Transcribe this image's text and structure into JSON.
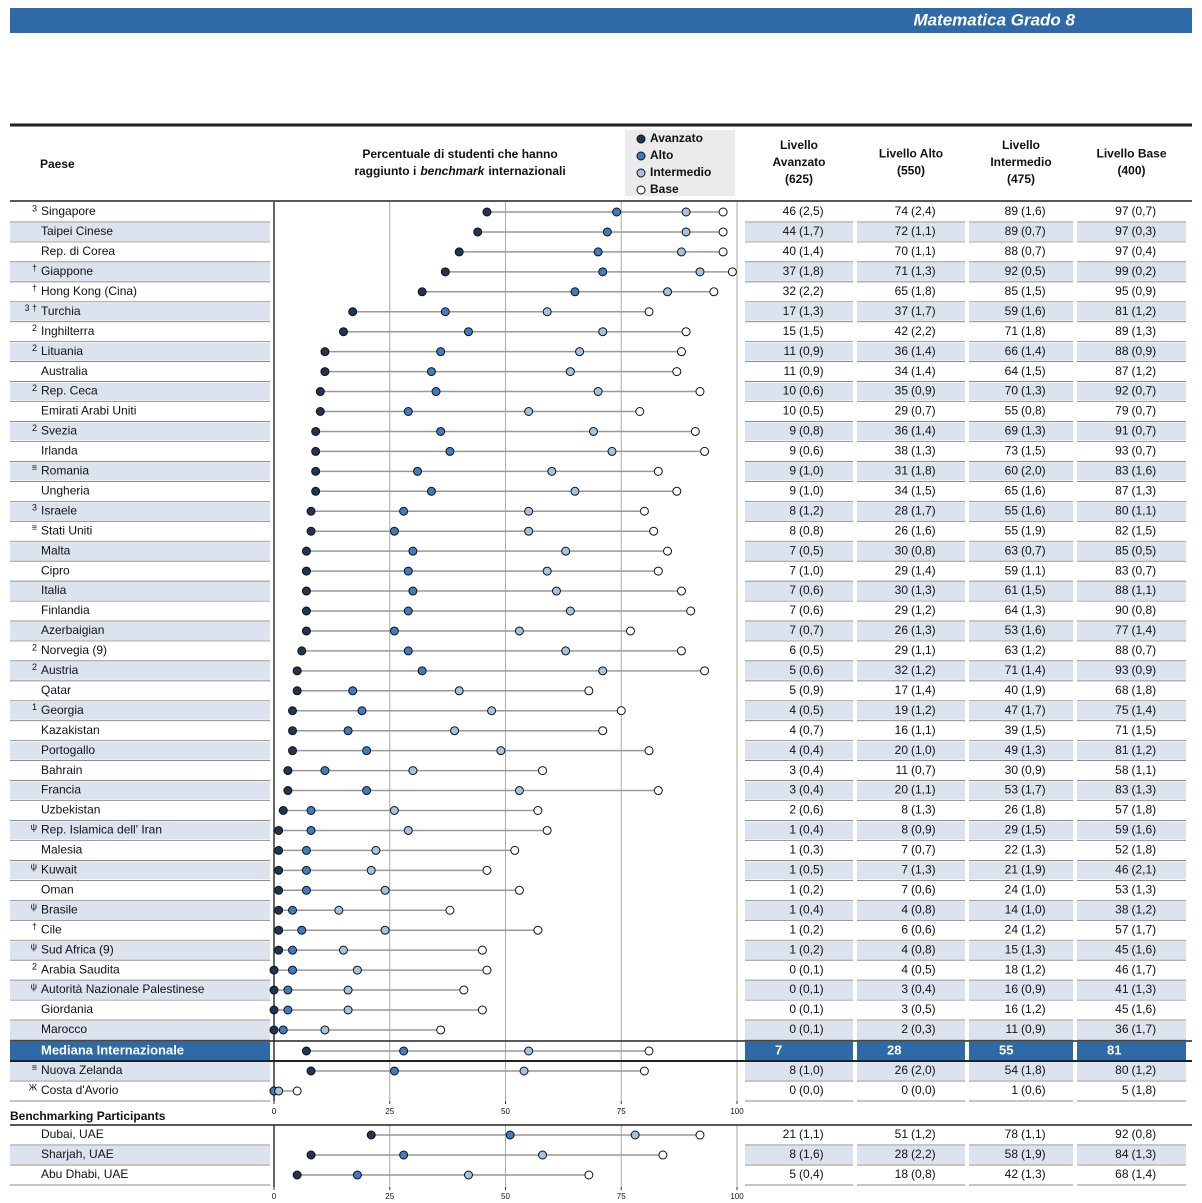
{
  "header": {
    "title": "Matematica Grado 8"
  },
  "chart_data": {
    "type": "dot",
    "country_header": "Paese",
    "chart_header": [
      "Percentuale di studenti che hanno",
      "raggiunto i",
      "benchmark",
      "internazionali"
    ],
    "column_headers": [
      [
        "Livello",
        "Avanzato",
        "(625)"
      ],
      [
        "Livello Alto",
        "(550)"
      ],
      [
        "Livello",
        "Intermedio",
        "(475)"
      ],
      [
        "Livello Base",
        "(400)"
      ]
    ],
    "series": [
      {
        "name": "Avanzato",
        "color": "#1f3550"
      },
      {
        "name": "Alto",
        "color": "#3d7cc0"
      },
      {
        "name": "Intermedio",
        "color": "#a3c3e2"
      },
      {
        "name": "Base",
        "color": "#ffffff"
      }
    ],
    "xlim": [
      0,
      100
    ],
    "xticks": [
      0,
      25,
      50,
      75,
      100
    ],
    "grid": true,
    "rows": [
      {
        "note": "3",
        "name": "Singapore",
        "values": [
          46,
          74,
          89,
          97
        ],
        "se": [
          "(2,5)",
          "(2,4)",
          "(1,6)",
          "(0,7)"
        ]
      },
      {
        "note": "",
        "name": "Taipei Cinese",
        "values": [
          44,
          72,
          89,
          97
        ],
        "se": [
          "(1,7)",
          "(1,1)",
          "(0,7)",
          "(0,3)"
        ]
      },
      {
        "note": "",
        "name": "Rep. di Corea",
        "values": [
          40,
          70,
          88,
          97
        ],
        "se": [
          "(1,4)",
          "(1,1)",
          "(0,7)",
          "(0,4)"
        ]
      },
      {
        "note": "†",
        "name": "Giappone",
        "values": [
          37,
          71,
          92,
          99
        ],
        "se": [
          "(1,8)",
          "(1,3)",
          "(0,5)",
          "(0,2)"
        ]
      },
      {
        "note": "†",
        "name": "Hong Kong (Cina)",
        "values": [
          32,
          65,
          85,
          95
        ],
        "se": [
          "(2,2)",
          "(1,8)",
          "(1,5)",
          "(0,9)"
        ]
      },
      {
        "note": "3 †",
        "name": "Turchia",
        "values": [
          17,
          37,
          59,
          81
        ],
        "se": [
          "(1,3)",
          "(1,7)",
          "(1,6)",
          "(1,2)"
        ]
      },
      {
        "note": "2",
        "name": "Inghilterra",
        "values": [
          15,
          42,
          71,
          89
        ],
        "se": [
          "(1,5)",
          "(2,2)",
          "(1,8)",
          "(1,3)"
        ]
      },
      {
        "note": "2",
        "name": "Lituania",
        "values": [
          11,
          36,
          66,
          88
        ],
        "se": [
          "(0,9)",
          "(1,4)",
          "(1,4)",
          "(0,9)"
        ]
      },
      {
        "note": "",
        "name": "Australia",
        "values": [
          11,
          34,
          64,
          87
        ],
        "se": [
          "(0,9)",
          "(1,4)",
          "(1,5)",
          "(1,2)"
        ]
      },
      {
        "note": "2",
        "name": "Rep. Ceca",
        "values": [
          10,
          35,
          70,
          92
        ],
        "se": [
          "(0,6)",
          "(0,9)",
          "(1,3)",
          "(0,7)"
        ]
      },
      {
        "note": "",
        "name": "Emirati Arabi Uniti",
        "values": [
          10,
          29,
          55,
          79
        ],
        "se": [
          "(0,5)",
          "(0,7)",
          "(0,8)",
          "(0,7)"
        ]
      },
      {
        "note": "2",
        "name": "Svezia",
        "values": [
          9,
          36,
          69,
          91
        ],
        "se": [
          "(0,8)",
          "(1,4)",
          "(1,3)",
          "(0,7)"
        ]
      },
      {
        "note": "",
        "name": "Irlanda",
        "values": [
          9,
          38,
          73,
          93
        ],
        "se": [
          "(0,6)",
          "(1,3)",
          "(1,5)",
          "(0,7)"
        ]
      },
      {
        "note": "≡",
        "name": "Romania",
        "values": [
          9,
          31,
          60,
          83
        ],
        "se": [
          "(1,0)",
          "(1,8)",
          "(2,0)",
          "(1,6)"
        ]
      },
      {
        "note": "",
        "name": "Ungheria",
        "values": [
          9,
          34,
          65,
          87
        ],
        "se": [
          "(1,0)",
          "(1,5)",
          "(1,6)",
          "(1,3)"
        ]
      },
      {
        "note": "3",
        "name": "Israele",
        "values": [
          8,
          28,
          55,
          80
        ],
        "se": [
          "(1,2)",
          "(1,7)",
          "(1,6)",
          "(1,1)"
        ]
      },
      {
        "note": "≡",
        "name": "Stati Uniti",
        "values": [
          8,
          26,
          55,
          82
        ],
        "se": [
          "(0,8)",
          "(1,6)",
          "(1,9)",
          "(1,5)"
        ]
      },
      {
        "note": "",
        "name": "Malta",
        "values": [
          7,
          30,
          63,
          85
        ],
        "se": [
          "(0,5)",
          "(0,8)",
          "(0,7)",
          "(0,5)"
        ]
      },
      {
        "note": "",
        "name": "Cipro",
        "values": [
          7,
          29,
          59,
          83
        ],
        "se": [
          "(1,0)",
          "(1,4)",
          "(1,1)",
          "(0,7)"
        ]
      },
      {
        "note": "",
        "name": "Italia",
        "values": [
          7,
          30,
          61,
          88
        ],
        "se": [
          "(0,6)",
          "(1,3)",
          "(1,5)",
          "(1,1)"
        ]
      },
      {
        "note": "",
        "name": "Finlandia",
        "values": [
          7,
          29,
          64,
          90
        ],
        "se": [
          "(0,6)",
          "(1,2)",
          "(1,3)",
          "(0,8)"
        ]
      },
      {
        "note": "",
        "name": "Azerbaigian",
        "values": [
          7,
          26,
          53,
          77
        ],
        "se": [
          "(0,7)",
          "(1,3)",
          "(1,6)",
          "(1,4)"
        ]
      },
      {
        "note": "2",
        "name": "Norvegia (9)",
        "values": [
          6,
          29,
          63,
          88
        ],
        "se": [
          "(0,5)",
          "(1,1)",
          "(1,2)",
          "(0,7)"
        ]
      },
      {
        "note": "2",
        "name": "Austria",
        "values": [
          5,
          32,
          71,
          93
        ],
        "se": [
          "(0,6)",
          "(1,2)",
          "(1,4)",
          "(0,9)"
        ]
      },
      {
        "note": "",
        "name": "Qatar",
        "values": [
          5,
          17,
          40,
          68
        ],
        "se": [
          "(0,9)",
          "(1,4)",
          "(1,9)",
          "(1,8)"
        ]
      },
      {
        "note": "1",
        "name": "Georgia",
        "values": [
          4,
          19,
          47,
          75
        ],
        "se": [
          "(0,5)",
          "(1,2)",
          "(1,7)",
          "(1,4)"
        ]
      },
      {
        "note": "",
        "name": "Kazakistan",
        "values": [
          4,
          16,
          39,
          71
        ],
        "se": [
          "(0,7)",
          "(1,1)",
          "(1,5)",
          "(1,5)"
        ]
      },
      {
        "note": "",
        "name": "Portogallo",
        "values": [
          4,
          20,
          49,
          81
        ],
        "se": [
          "(0,4)",
          "(1,0)",
          "(1,3)",
          "(1,2)"
        ]
      },
      {
        "note": "",
        "name": "Bahrain",
        "values": [
          3,
          11,
          30,
          58
        ],
        "se": [
          "(0,4)",
          "(0,7)",
          "(0,9)",
          "(1,1)"
        ]
      },
      {
        "note": "",
        "name": "Francia",
        "values": [
          3,
          20,
          53,
          83
        ],
        "se": [
          "(0,4)",
          "(1,1)",
          "(1,7)",
          "(1,3)"
        ]
      },
      {
        "note": "",
        "name": "Uzbekistan",
        "values": [
          2,
          8,
          26,
          57
        ],
        "se": [
          "(0,6)",
          "(1,3)",
          "(1,8)",
          "(1,8)"
        ]
      },
      {
        "note": "ψ",
        "name": "Rep. Islamica dell' Iran",
        "values": [
          1,
          8,
          29,
          59
        ],
        "se": [
          "(0,4)",
          "(0,9)",
          "(1,5)",
          "(1,6)"
        ]
      },
      {
        "note": "",
        "name": "Malesia",
        "values": [
          1,
          7,
          22,
          52
        ],
        "se": [
          "(0,3)",
          "(0,7)",
          "(1,3)",
          "(1,8)"
        ]
      },
      {
        "note": "ψ",
        "name": "Kuwait",
        "values": [
          1,
          7,
          21,
          46
        ],
        "se": [
          "(0,5)",
          "(1,3)",
          "(1,9)",
          "(2,1)"
        ]
      },
      {
        "note": "",
        "name": "Oman",
        "values": [
          1,
          7,
          24,
          53
        ],
        "se": [
          "(0,2)",
          "(0,6)",
          "(1,0)",
          "(1,3)"
        ]
      },
      {
        "note": "ψ",
        "name": "Brasile",
        "values": [
          1,
          4,
          14,
          38
        ],
        "se": [
          "(0,4)",
          "(0,8)",
          "(1,0)",
          "(1,2)"
        ]
      },
      {
        "note": "†",
        "name": "Cile",
        "values": [
          1,
          6,
          24,
          57
        ],
        "se": [
          "(0,2)",
          "(0,6)",
          "(1,2)",
          "(1,7)"
        ]
      },
      {
        "note": "ψ",
        "name": "Sud Africa (9)",
        "values": [
          1,
          4,
          15,
          45
        ],
        "se": [
          "(0,2)",
          "(0,8)",
          "(1,3)",
          "(1,6)"
        ]
      },
      {
        "note": "2",
        "name": "Arabia Saudita",
        "values": [
          0,
          4,
          18,
          46
        ],
        "se": [
          "(0,1)",
          "(0,5)",
          "(1,2)",
          "(1,7)"
        ]
      },
      {
        "note": "ψ",
        "name": "Autorità Nazionale Palestinese",
        "values": [
          0,
          3,
          16,
          41
        ],
        "se": [
          "(0,1)",
          "(0,4)",
          "(0,9)",
          "(1,3)"
        ]
      },
      {
        "note": "",
        "name": "Giordania",
        "values": [
          0,
          3,
          16,
          45
        ],
        "se": [
          "(0,1)",
          "(0,5)",
          "(1,2)",
          "(1,6)"
        ]
      },
      {
        "note": "",
        "name": "Marocco",
        "values": [
          0,
          2,
          11,
          36
        ],
        "se": [
          "(0,1)",
          "(0,3)",
          "(0,9)",
          "(1,7)"
        ]
      }
    ],
    "median": {
      "name": "Mediana Internazionale",
      "values": [
        7,
        28,
        55,
        81
      ]
    },
    "extra_rows": [
      {
        "note": "≡",
        "name": "Nuova Zelanda",
        "values": [
          8,
          26,
          54,
          80
        ],
        "se": [
          "(1,0)",
          "(2,0)",
          "(1,8)",
          "(1,2)"
        ]
      },
      {
        "note": "Ж",
        "name": "Costa d'Avorio",
        "values": [
          0,
          0,
          1,
          5
        ],
        "se": [
          "(0,0)",
          "(0,0)",
          "(0,6)",
          "(1,8)"
        ]
      }
    ],
    "benchmarking": {
      "title": "Benchmarking Participants",
      "rows": [
        {
          "note": "",
          "name": "Dubai, UAE",
          "values": [
            21,
            51,
            78,
            92
          ],
          "se": [
            "(1,1)",
            "(1,2)",
            "(1,1)",
            "(0,8)"
          ]
        },
        {
          "note": "",
          "name": "Sharjah, UAE",
          "values": [
            8,
            28,
            58,
            84
          ],
          "se": [
            "(1,6)",
            "(2,2)",
            "(1,9)",
            "(1,3)"
          ]
        },
        {
          "note": "",
          "name": "Abu Dhabi, UAE",
          "values": [
            5,
            18,
            42,
            68
          ],
          "se": [
            "(0,4)",
            "(0,8)",
            "(1,3)",
            "(1,4)"
          ]
        }
      ]
    }
  }
}
